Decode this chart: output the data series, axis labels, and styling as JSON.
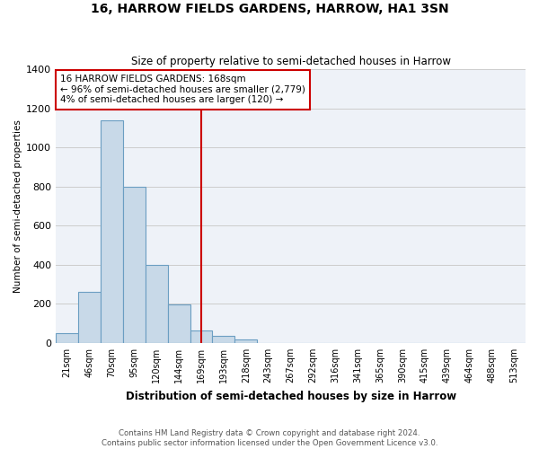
{
  "title": "16, HARROW FIELDS GARDENS, HARROW, HA1 3SN",
  "subtitle": "Size of property relative to semi-detached houses in Harrow",
  "xlabel": "Distribution of semi-detached houses by size in Harrow",
  "ylabel": "Number of semi-detached properties",
  "bar_labels": [
    "21sqm",
    "46sqm",
    "70sqm",
    "95sqm",
    "120sqm",
    "144sqm",
    "169sqm",
    "193sqm",
    "218sqm",
    "243sqm",
    "267sqm",
    "292sqm",
    "316sqm",
    "341sqm",
    "365sqm",
    "390sqm",
    "415sqm",
    "439sqm",
    "464sqm",
    "488sqm",
    "513sqm"
  ],
  "bar_values": [
    50,
    260,
    1140,
    800,
    400,
    195,
    65,
    35,
    20,
    0,
    0,
    0,
    0,
    0,
    0,
    0,
    0,
    0,
    0,
    0,
    0
  ],
  "bar_color": "#c8d9e8",
  "bar_edge_color": "#6b9ec2",
  "property_bin_index": 6,
  "annotation_text": "16 HARROW FIELDS GARDENS: 168sqm\n← 96% of semi-detached houses are smaller (2,779)\n4% of semi-detached houses are larger (120) →",
  "annotation_box_color": "#ffffff",
  "annotation_box_edge_color": "#cc0000",
  "red_line_color": "#cc0000",
  "ylim": [
    0,
    1400
  ],
  "yticks": [
    0,
    200,
    400,
    600,
    800,
    1000,
    1200,
    1400
  ],
  "grid_color": "#cccccc",
  "background_color": "#eef2f8",
  "footer_line1": "Contains HM Land Registry data © Crown copyright and database right 2024.",
  "footer_line2": "Contains public sector information licensed under the Open Government Licence v3.0."
}
